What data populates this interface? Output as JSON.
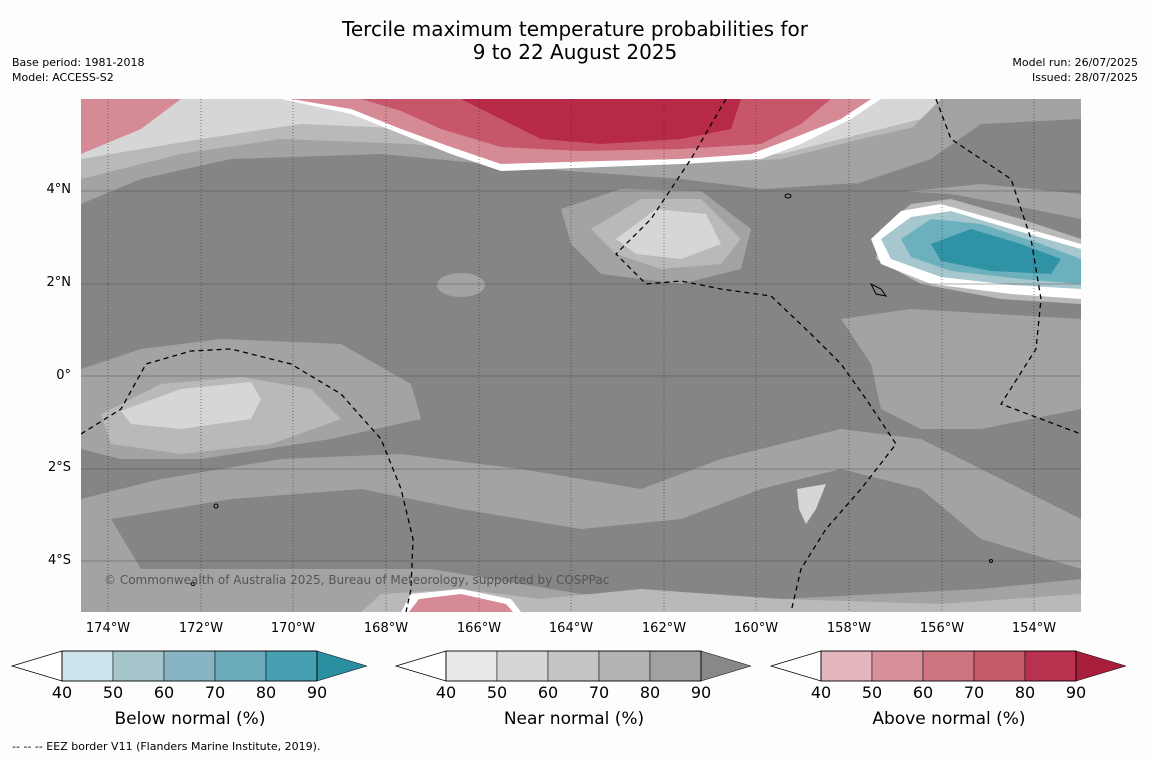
{
  "title": {
    "line1": "Tercile maximum temperature probabilities for",
    "line2": "9 to 22 August 2025"
  },
  "meta_left": {
    "base_period": "Base period: 1981-2018",
    "model": "Model: ACCESS-S2"
  },
  "meta_right": {
    "model_run": "Model run: 26/07/2025",
    "issued": "Issued: 28/07/2025"
  },
  "map": {
    "lat_labels": [
      "4°N",
      "2°N",
      "0°",
      "2°S",
      "4°S"
    ],
    "lon_labels": [
      "174°W",
      "172°W",
      "170°W",
      "168°W",
      "166°W",
      "164°W",
      "162°W",
      "160°W",
      "158°W",
      "156°W",
      "154°W"
    ],
    "copyright": "© Commonwealth of Australia 2025, Bureau of Meteorology, supported by COSPPac",
    "colors": {
      "near_base": "#858585",
      "near_70": "#a3a3a3",
      "near_60": "#b9b9b9",
      "near_50": "#d6d6d6",
      "above_50": "#d68a95",
      "above_70": "#c8566a",
      "above_90": "#b72a47",
      "below_50": "#a7c7cf",
      "below_70": "#6db0bd",
      "below_90": "#2f93a5"
    }
  },
  "colorbars": [
    {
      "label": "Below normal (%)",
      "ticks": [
        "40",
        "50",
        "60",
        "70",
        "80",
        "90"
      ],
      "colors": [
        "#cbe3ea",
        "#a6c5cb",
        "#88b5c3",
        "#6aaab9",
        "#46a0b1",
        "#2b8fa1"
      ]
    },
    {
      "label": "Near normal (%)",
      "ticks": [
        "40",
        "50",
        "60",
        "70",
        "80",
        "90"
      ],
      "colors": [
        "#e8e8e8",
        "#d6d6d6",
        "#c4c4c4",
        "#b3b3b3",
        "#a1a1a1",
        "#888888"
      ]
    },
    {
      "label": "Above normal (%)",
      "ticks": [
        "40",
        "50",
        "60",
        "70",
        "80",
        "90"
      ],
      "colors": [
        "#e3b6bd",
        "#d8909a",
        "#cd7680",
        "#c35b69",
        "#ba3150",
        "#a91e3a"
      ]
    }
  ],
  "footer": "--  --  -- EEZ border V11 (Flanders Marine Institute, 2019)."
}
